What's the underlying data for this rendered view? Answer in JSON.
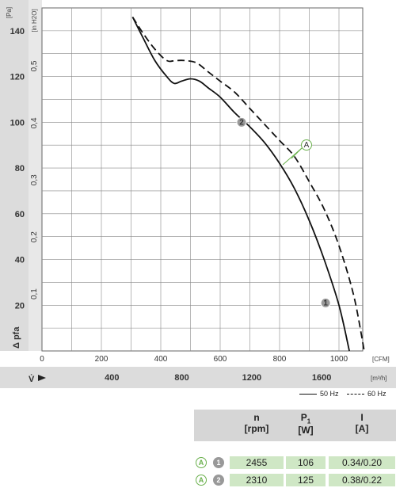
{
  "chart_data": {
    "type": "line",
    "ylabel": "Δ pfa",
    "xlabel": "V̇",
    "y_unit_left": "[Pa]",
    "y_unit_right": "[in H2O]",
    "x_unit_top": "[CFM]",
    "x_unit_bottom": "[m³/h]",
    "ylim": [
      0,
      150
    ],
    "xlim_cfm": [
      0,
      1080
    ],
    "y_ticks_pa": [
      20,
      40,
      60,
      80,
      100,
      120,
      140
    ],
    "y_ticks_inh2o": [
      "0,1",
      "0,2",
      "0,3",
      "0,4",
      "0,5"
    ],
    "x_ticks_cfm": [
      0,
      200,
      400,
      600,
      800,
      1000
    ],
    "x_ticks_m3h": [
      400,
      800,
      1200,
      1600
    ],
    "series": [
      {
        "name": "50 Hz",
        "style": "solid",
        "x": [
          305,
          340,
          380,
          420,
          445,
          470,
          500,
          530,
          560,
          600,
          650,
          700,
          750,
          800,
          850,
          900,
          950,
          1000,
          1035
        ],
        "y": [
          146,
          137,
          127,
          120,
          117,
          118,
          119,
          118,
          115,
          111,
          104,
          98,
          91,
          82,
          71,
          57,
          40,
          20,
          0
        ]
      },
      {
        "name": "60 Hz",
        "style": "dashed",
        "x": [
          305,
          340,
          380,
          420,
          450,
          480,
          520,
          560,
          600,
          650,
          700,
          750,
          800,
          850,
          900,
          950,
          1000,
          1050,
          1085
        ],
        "y": [
          146,
          139,
          132,
          127,
          127,
          127,
          126,
          122,
          118,
          113,
          106,
          99,
          92,
          85,
          74,
          62,
          46,
          24,
          0
        ]
      }
    ],
    "points": [
      {
        "label": "1",
        "x": 955,
        "y": 21
      },
      {
        "label": "2",
        "x": 672,
        "y": 100
      }
    ],
    "annotation": {
      "label": "A",
      "x": 815,
      "y": 95
    },
    "colors": {
      "line": "#111111",
      "grid": "#888888",
      "point": "#9a9a9a",
      "annotation": "#6ab04c",
      "axis_band": "#dcdcdc"
    }
  },
  "legend": {
    "solid_label": "50 Hz",
    "dashed_label": "60 Hz"
  },
  "table": {
    "headers": [
      {
        "top": "n",
        "bottom": "[rpm]"
      },
      {
        "top": "P",
        "sub": "1",
        "bottom": "[W]"
      },
      {
        "top": "I",
        "bottom": "[A]"
      }
    ],
    "rows": [
      {
        "marker": "A",
        "point": "1",
        "values": [
          "2455",
          "106",
          "0.34/0.20"
        ]
      },
      {
        "marker": "A",
        "point": "2",
        "values": [
          "2310",
          "125",
          "0.38/0.22"
        ]
      }
    ]
  }
}
